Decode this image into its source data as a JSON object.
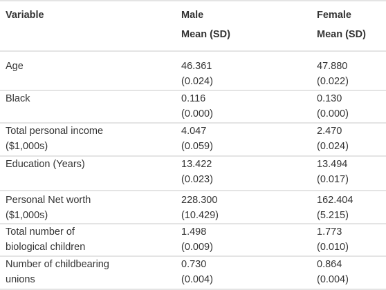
{
  "table": {
    "header": [
      [
        "Variable"
      ],
      [
        "Male",
        "Mean (SD)"
      ],
      [
        "Female",
        "Mean (SD)"
      ]
    ],
    "rows": [
      [
        [
          "Age"
        ],
        [
          "46.361",
          "(0.024)"
        ],
        [
          "47.880",
          "(0.022)"
        ]
      ],
      [
        [
          "Black"
        ],
        [
          "0.116",
          "(0.000)"
        ],
        [
          "0.130",
          "(0.000)"
        ]
      ],
      [
        [
          "Total personal income",
          "($1,000s)"
        ],
        [
          "4.047",
          "(0.059)"
        ],
        [
          "2.470",
          "(0.024)"
        ]
      ],
      [
        [
          "Education (Years)"
        ],
        [
          "13.422",
          "(0.023)"
        ],
        [
          "13.494",
          "(0.017)"
        ]
      ],
      [
        [
          "Personal Net worth",
          "($1,000s)"
        ],
        [
          "228.300",
          "(10.429)"
        ],
        [
          "162.404",
          "(5.215)"
        ]
      ],
      [
        [
          "Total number of",
          "biological children"
        ],
        [
          "1.498",
          "(0.009)"
        ],
        [
          "1.773",
          "(0.010)"
        ]
      ],
      [
        [
          "Number of childbearing",
          "unions"
        ],
        [
          "0.730",
          "(0.004)"
        ],
        [
          "0.864",
          "(0.004)"
        ]
      ]
    ]
  }
}
